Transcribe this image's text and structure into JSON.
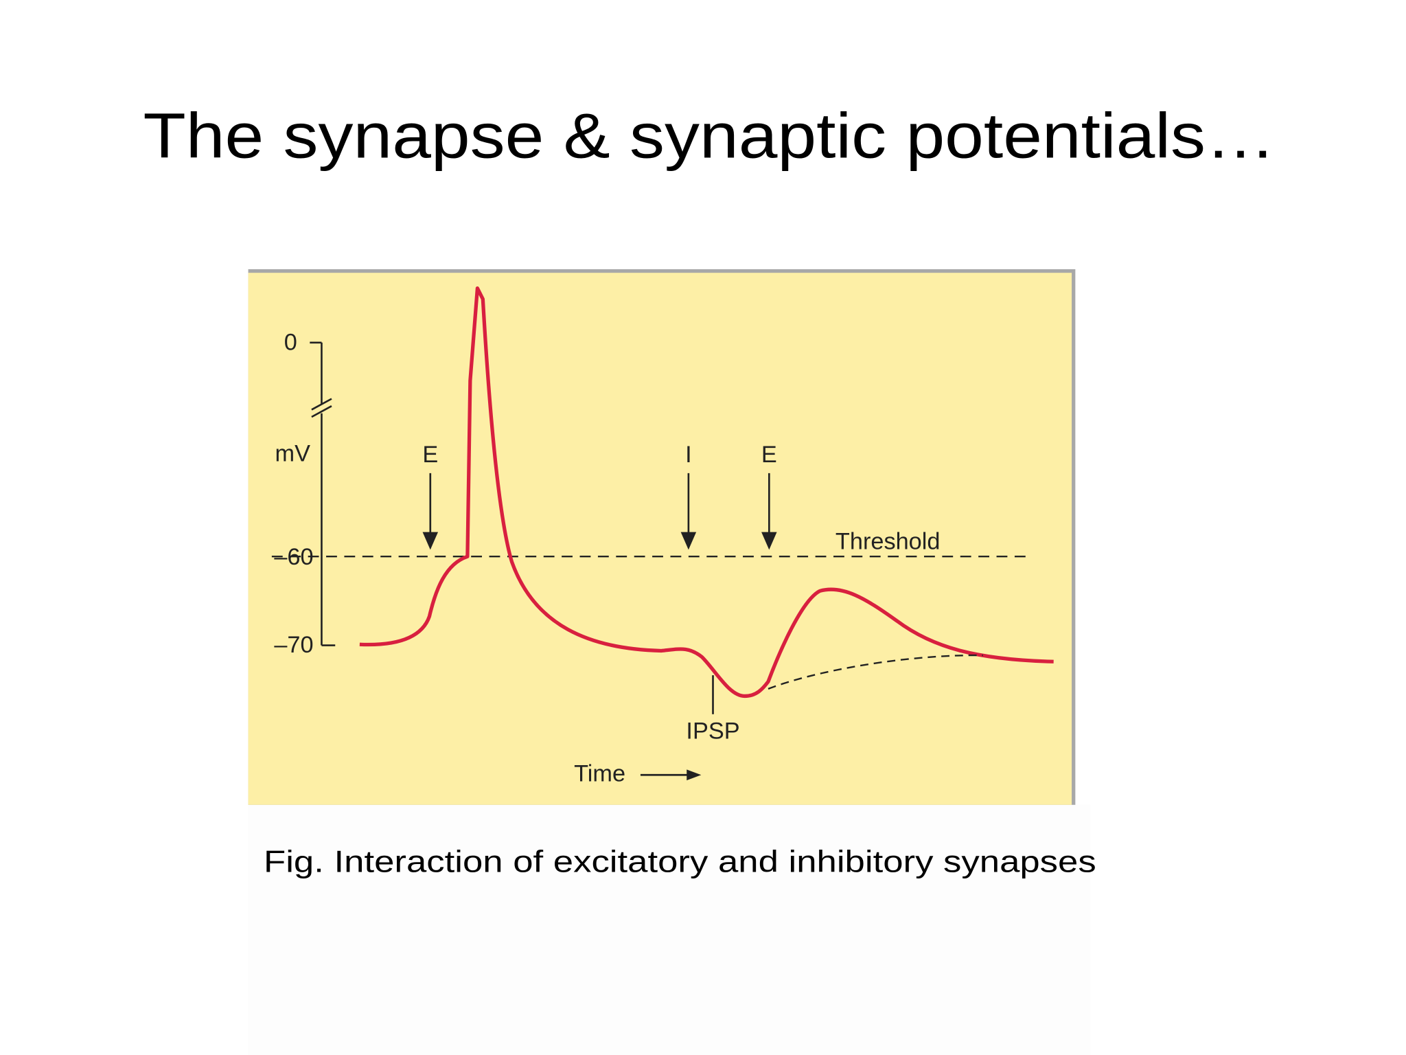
{
  "title": "The synapse & synaptic potentials…",
  "figure": {
    "y_axis": {
      "labels": [
        "0",
        "–60",
        "–70"
      ],
      "unit": "mV"
    },
    "stimuli": [
      "E",
      "I",
      "E"
    ],
    "threshold_label": "Threshold",
    "ipsp_label": "IPSP",
    "x_axis_label": "Time"
  },
  "caption": "Fig. Interaction of excitatory and inhibitory synapses"
}
